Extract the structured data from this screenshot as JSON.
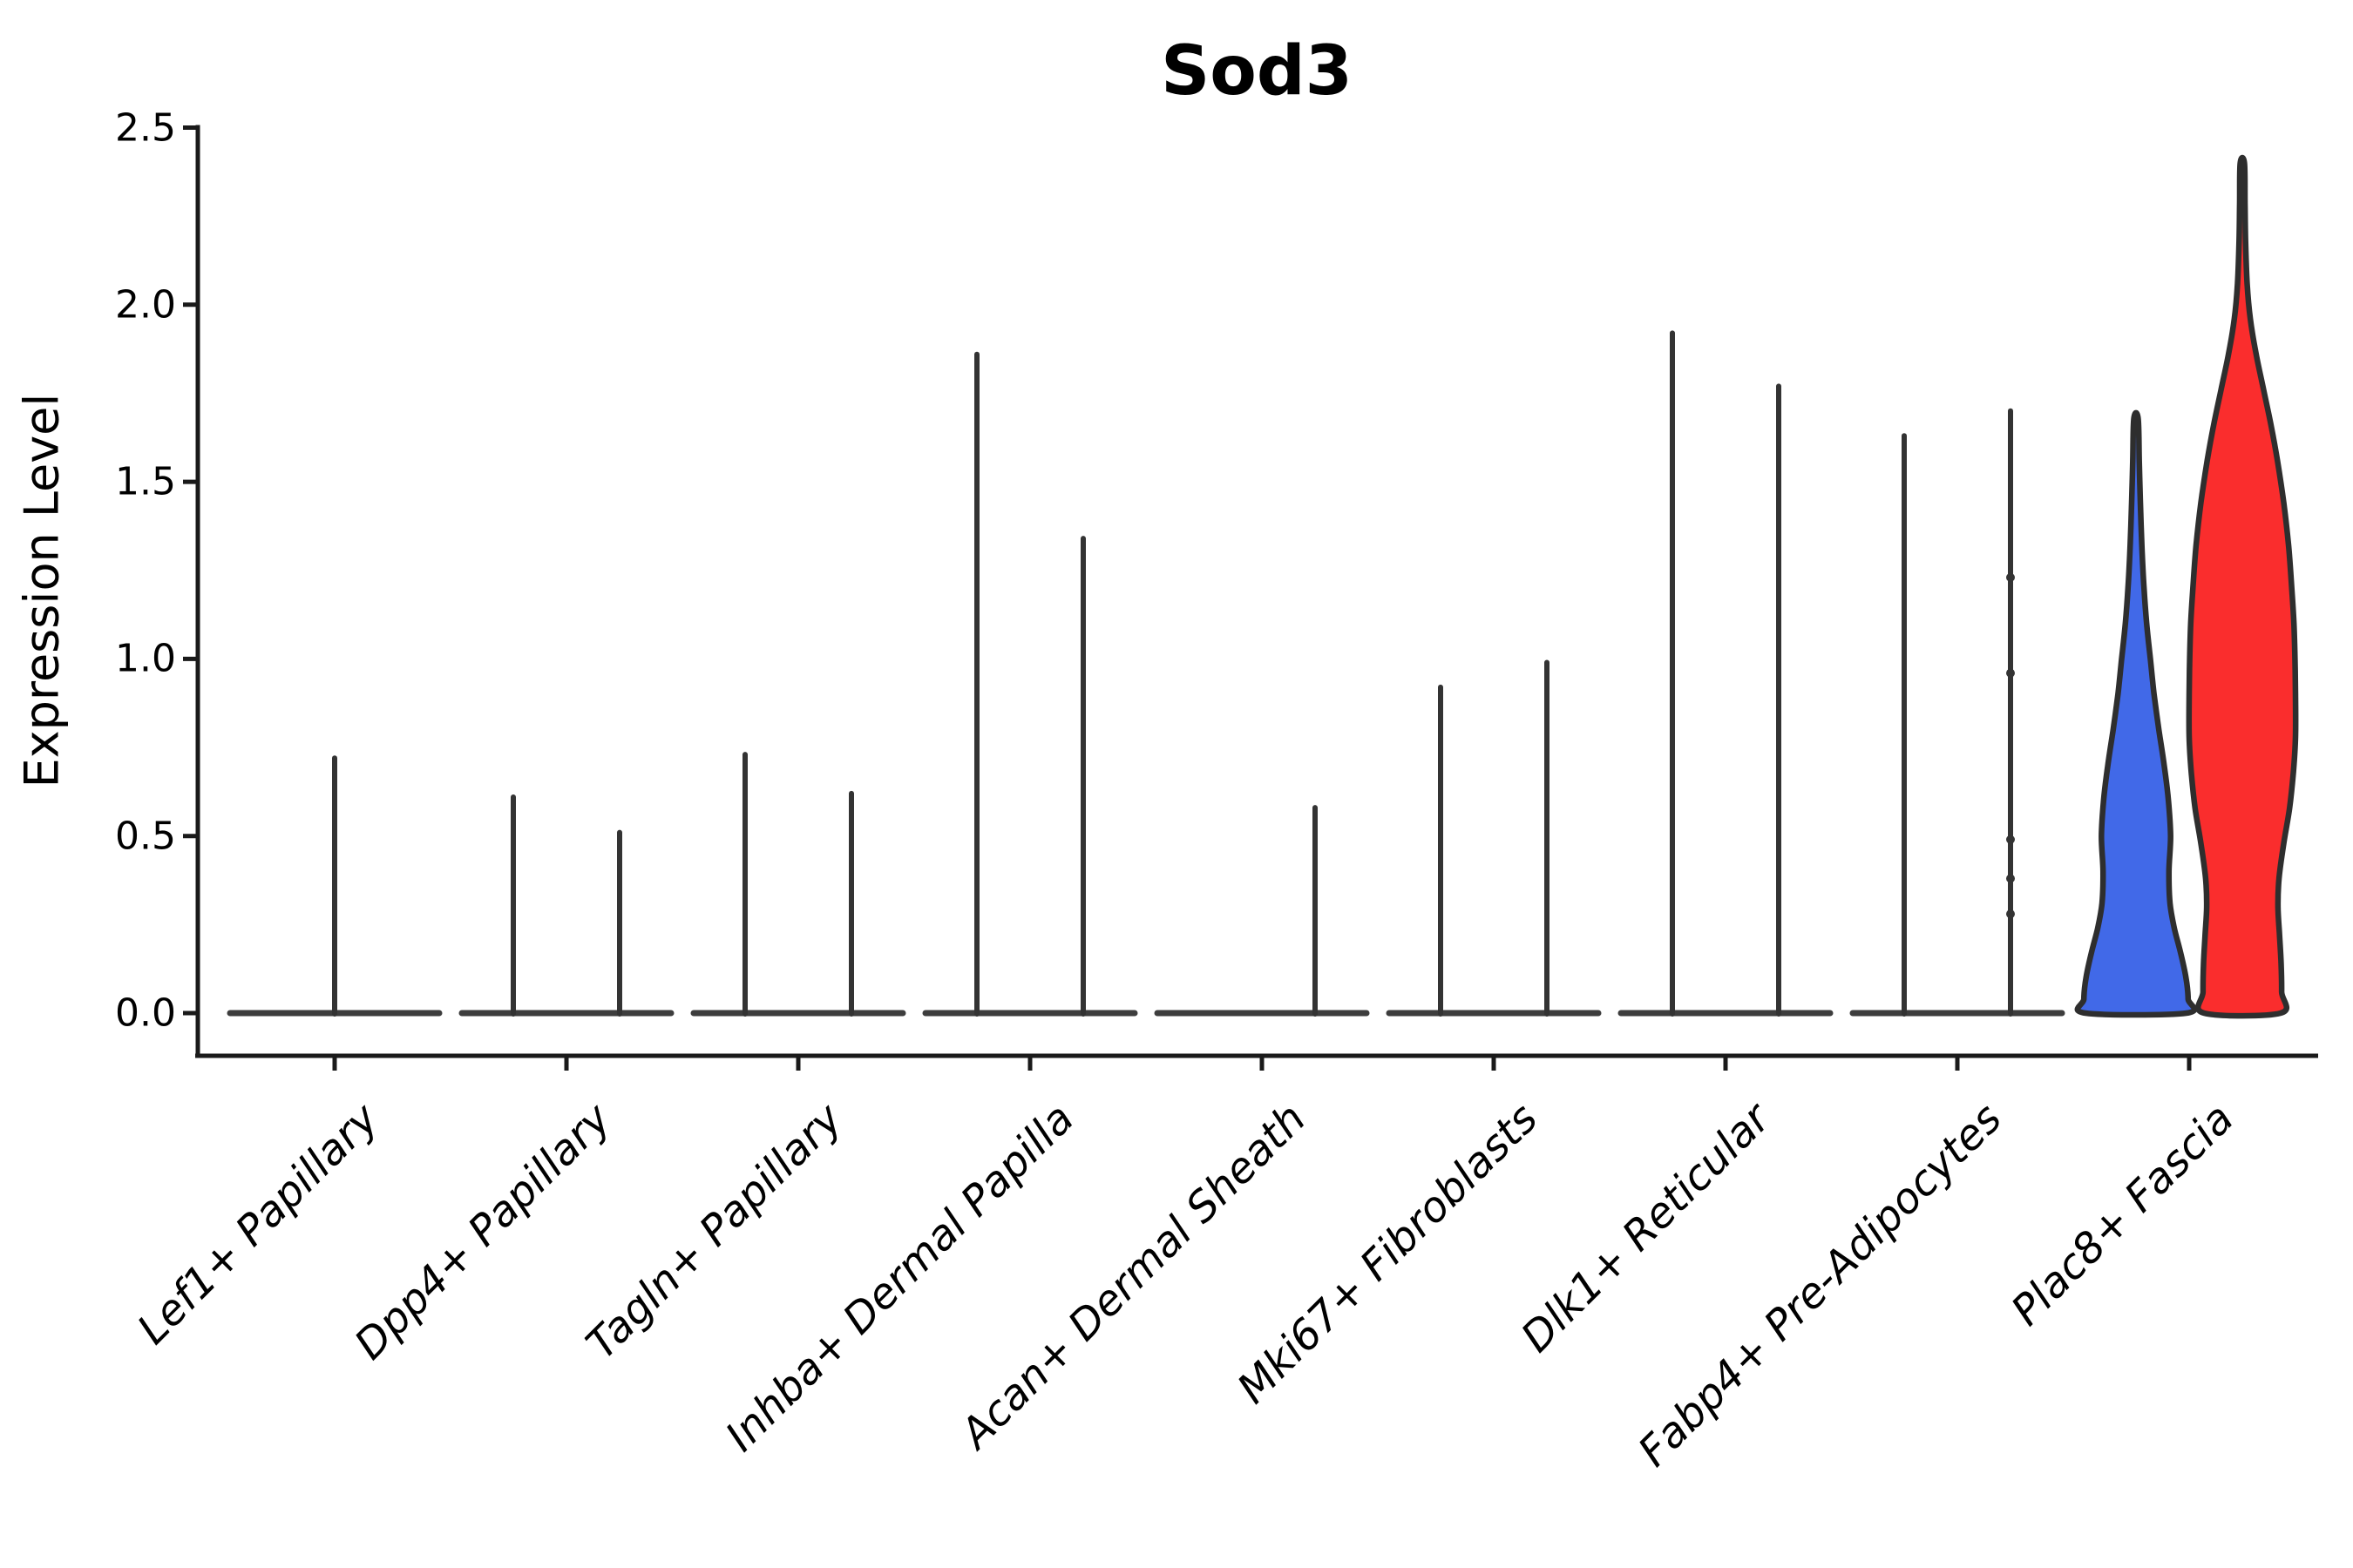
{
  "chart_data": {
    "type": "violin",
    "title": "Sod3",
    "ylabel": "Expression Level",
    "ylim": [
      0.0,
      2.5
    ],
    "yticks": [
      "0.0",
      "0.5",
      "1.0",
      "1.5",
      "2.0",
      "2.5"
    ],
    "grid": "off",
    "legend": "none",
    "colors": {
      "blue_violin_fill": "#4169e8",
      "red_violin_fill": "#fa2d2d",
      "violin_outline": "#2e2e2e",
      "spike_line": "#333333",
      "zero_baseline": "#3d3d3d",
      "axis": "#1a1a1a",
      "text": "#000000"
    },
    "categories": [
      {
        "label": "Lef1+ Papillary",
        "violins": [
          {
            "pos": "center",
            "style": "spike",
            "max": 0.72
          }
        ]
      },
      {
        "label": "Dpp4+ Papillary",
        "violins": [
          {
            "pos": "left",
            "style": "spike",
            "max": 0.61
          },
          {
            "pos": "right",
            "style": "spike",
            "max": 0.51
          }
        ]
      },
      {
        "label": "Tagln+ Papillary",
        "violins": [
          {
            "pos": "left",
            "style": "spike",
            "max": 0.73
          },
          {
            "pos": "right",
            "style": "spike",
            "max": 0.62
          }
        ]
      },
      {
        "label": "Inhba+ Dermal Papilla",
        "violins": [
          {
            "pos": "left",
            "style": "spike",
            "max": 1.86
          },
          {
            "pos": "right",
            "style": "spike",
            "max": 1.34
          }
        ]
      },
      {
        "label": "Acan+ Dermal Sheath",
        "violins": [
          {
            "pos": "right",
            "style": "spike",
            "max": 0.58
          }
        ]
      },
      {
        "label": "Mki67+ Fibroblasts",
        "violins": [
          {
            "pos": "left",
            "style": "spike",
            "max": 0.92
          },
          {
            "pos": "right",
            "style": "spike",
            "max": 0.99
          }
        ]
      },
      {
        "label": "Dlk1+ Reticular",
        "violins": [
          {
            "pos": "left",
            "style": "spike",
            "max": 1.92
          },
          {
            "pos": "right",
            "style": "spike",
            "max": 1.77
          }
        ]
      },
      {
        "label": "Fabp4+ Pre-Adipocytes",
        "violins": [
          {
            "pos": "left",
            "style": "spike",
            "max": 1.63
          },
          {
            "pos": "right",
            "style": "spike",
            "max": 1.7,
            "dots": [
              1.23,
              0.96,
              0.49,
              0.38,
              0.28
            ]
          }
        ]
      },
      {
        "label": "Plac8+ Fascia",
        "violins": [
          {
            "pos": "left",
            "style": "filled",
            "fill": "#4169e8",
            "max": 1.68,
            "profile": [
              [
                0.0,
                0.95
              ],
              [
                0.04,
                0.98
              ],
              [
                0.1,
                0.94
              ],
              [
                0.17,
                0.84
              ],
              [
                0.24,
                0.72
              ],
              [
                0.31,
                0.64
              ],
              [
                0.4,
                0.62
              ],
              [
                0.5,
                0.65
              ],
              [
                0.6,
                0.61
              ],
              [
                0.7,
                0.53
              ],
              [
                0.8,
                0.43
              ],
              [
                0.9,
                0.34
              ],
              [
                1.0,
                0.27
              ],
              [
                1.1,
                0.2
              ],
              [
                1.2,
                0.15
              ],
              [
                1.32,
                0.11
              ],
              [
                1.45,
                0.08
              ],
              [
                1.56,
                0.06
              ],
              [
                1.68,
                0.04
              ]
            ]
          },
          {
            "pos": "right",
            "style": "filled",
            "fill": "#fa2d2d",
            "max": 2.4,
            "profile": [
              [
                0.0,
                0.72
              ],
              [
                0.06,
                0.74
              ],
              [
                0.14,
                0.73
              ],
              [
                0.22,
                0.7
              ],
              [
                0.3,
                0.67
              ],
              [
                0.38,
                0.69
              ],
              [
                0.48,
                0.78
              ],
              [
                0.58,
                0.89
              ],
              [
                0.68,
                0.96
              ],
              [
                0.78,
                1.0
              ],
              [
                0.9,
                1.0
              ],
              [
                1.0,
                0.99
              ],
              [
                1.1,
                0.97
              ],
              [
                1.2,
                0.93
              ],
              [
                1.32,
                0.87
              ],
              [
                1.44,
                0.78
              ],
              [
                1.56,
                0.66
              ],
              [
                1.66,
                0.54
              ],
              [
                1.76,
                0.4
              ],
              [
                1.86,
                0.26
              ],
              [
                1.96,
                0.15
              ],
              [
                2.06,
                0.09
              ],
              [
                2.18,
                0.06
              ],
              [
                2.28,
                0.05
              ],
              [
                2.4,
                0.04
              ]
            ]
          }
        ]
      }
    ]
  }
}
